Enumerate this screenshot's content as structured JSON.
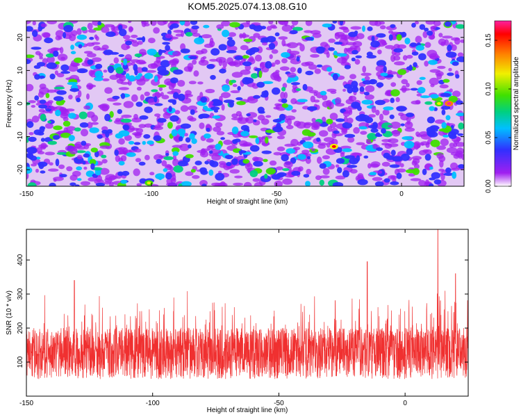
{
  "title": "KOM5.2025.074.13.08.G10",
  "chart_data": [
    {
      "type": "heatmap",
      "xlabel": "Height of straight line (km)",
      "ylabel": "Frequency (Hz)",
      "xlim": [
        -150,
        25
      ],
      "ylim": [
        -25,
        25
      ],
      "x_ticks": [
        -150,
        -100,
        -50,
        0
      ],
      "y_ticks": [
        -20,
        -10,
        0,
        10,
        20
      ],
      "colorbar": {
        "label": "Normalized spectral amplitude",
        "range": [
          0.0,
          0.17
        ],
        "ticks": [
          "0.00",
          "0.05",
          "0.10",
          "0.15"
        ],
        "colormap": [
          "#ffffff",
          "#a020f0",
          "#3030ff",
          "#00c0ff",
          "#00d080",
          "#40e000",
          "#f0f000",
          "#ff8000",
          "#ff0000",
          "#ff20a0"
        ]
      },
      "notable_peaks": [
        {
          "x": 19,
          "y": 0,
          "value": 0.17
        },
        {
          "x": 15,
          "y": 0,
          "value": 0.12
        },
        {
          "x": -27,
          "y": -13,
          "value": 0.15
        },
        {
          "x": -101,
          "y": -24,
          "value": 0.12
        }
      ],
      "grid": false
    },
    {
      "type": "line",
      "xlabel": "Height of straight line (km)",
      "ylabel": "SNR (10 * v/v)",
      "xlim": [
        -150,
        25
      ],
      "ylim": [
        0,
        490
      ],
      "x_ticks": [
        -150,
        -100,
        -50,
        0
      ],
      "y_ticks": [
        100,
        200,
        300,
        400
      ],
      "series": [
        {
          "color": "#f03030",
          "typical_range": [
            20,
            300
          ],
          "peaks": [
            {
              "x": 13,
              "y": 490
            },
            {
              "x": -15,
              "y": 395
            },
            {
              "x": -131,
              "y": 340
            },
            {
              "x": 20,
              "y": 360
            }
          ]
        }
      ],
      "grid": false
    }
  ]
}
